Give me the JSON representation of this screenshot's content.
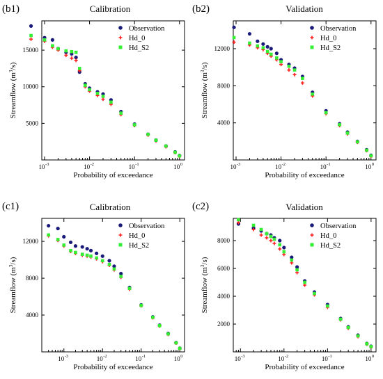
{
  "figure": {
    "xlabel": "Probability  of  exceedance",
    "ylabel_main": "Streamflow (m",
    "ylabel_sup": "3",
    "ylabel_tail": "/s)"
  },
  "legend_labels": [
    "Observation",
    "Hd_0",
    "Hd_S2"
  ],
  "chart_data": [
    {
      "panel": "(b1)",
      "title": "Calibration",
      "type": "scatter",
      "x_scale": "log",
      "xlim_decades": [
        -3,
        0
      ],
      "yticks": [
        5000,
        10000,
        15000
      ],
      "ylim": [
        0,
        19000
      ],
      "legend": "top-right",
      "series": [
        {
          "name": "Observation",
          "color": "#1a1a7a",
          "marker": "circle",
          "x": [
            0.0005,
            0.001,
            0.0015,
            0.002,
            0.003,
            0.004,
            0.005,
            0.006,
            0.008,
            0.01,
            0.015,
            0.02,
            0.03,
            0.05,
            0.1,
            0.2,
            0.3,
            0.5,
            0.8,
            1.0
          ],
          "y": [
            18300,
            16700,
            16400,
            15200,
            14700,
            14500,
            14000,
            12000,
            10400,
            9800,
            9300,
            9000,
            8200,
            6600,
            4900,
            3500,
            2700,
            1900,
            1100,
            600
          ]
        },
        {
          "name": "Hd_0",
          "color": "#ff2020",
          "marker": "plus",
          "x": [
            0.0005,
            0.001,
            0.0015,
            0.002,
            0.003,
            0.004,
            0.005,
            0.006,
            0.008,
            0.01,
            0.015,
            0.02,
            0.03,
            0.05,
            0.1,
            0.2,
            0.3,
            0.5,
            0.8,
            1.0
          ],
          "y": [
            16500,
            16200,
            15400,
            15000,
            14300,
            13900,
            13600,
            12200,
            10000,
            9400,
            8800,
            8300,
            7600,
            6200,
            4700,
            3400,
            2600,
            1800,
            1000,
            500
          ]
        },
        {
          "name": "Hd_S2",
          "color": "#33ee33",
          "marker": "square",
          "x": [
            0.0005,
            0.001,
            0.0015,
            0.002,
            0.003,
            0.004,
            0.005,
            0.006,
            0.008,
            0.01,
            0.015,
            0.02,
            0.03,
            0.05,
            0.1,
            0.2,
            0.3,
            0.5,
            0.8,
            1.0
          ],
          "y": [
            17000,
            16400,
            15600,
            15200,
            14900,
            14800,
            14700,
            12500,
            10200,
            9600,
            9100,
            8700,
            7900,
            6400,
            4800,
            3500,
            2700,
            1900,
            1050,
            550
          ]
        }
      ]
    },
    {
      "panel": "(b2)",
      "title": "Validation",
      "type": "scatter",
      "x_scale": "log",
      "xlim_decades": [
        -3,
        0
      ],
      "yticks": [
        4000,
        8000,
        12000
      ],
      "ylim": [
        0,
        15000
      ],
      "legend": "top-right",
      "series": [
        {
          "name": "Observation",
          "color": "#1a1a7a",
          "marker": "circle",
          "x": [
            0.0009,
            0.002,
            0.003,
            0.004,
            0.005,
            0.006,
            0.008,
            0.01,
            0.015,
            0.02,
            0.03,
            0.05,
            0.1,
            0.2,
            0.3,
            0.5,
            0.8,
            1.0
          ],
          "y": [
            14300,
            13600,
            12800,
            12500,
            12200,
            12000,
            11500,
            10800,
            10300,
            9900,
            9000,
            7300,
            5300,
            3900,
            3000,
            2000,
            1100,
            500
          ]
        },
        {
          "name": "Hd_0",
          "color": "#ff2020",
          "marker": "plus",
          "x": [
            0.0009,
            0.002,
            0.003,
            0.004,
            0.005,
            0.006,
            0.008,
            0.01,
            0.015,
            0.02,
            0.03,
            0.05,
            0.1,
            0.2,
            0.3,
            0.5,
            0.8,
            1.0
          ],
          "y": [
            12700,
            12400,
            12100,
            11900,
            11500,
            11200,
            10800,
            10300,
            9700,
            9200,
            8300,
            6900,
            5000,
            3700,
            2800,
            1900,
            1000,
            400
          ]
        },
        {
          "name": "Hd_S2",
          "color": "#33ee33",
          "marker": "square",
          "x": [
            0.0009,
            0.002,
            0.003,
            0.004,
            0.005,
            0.006,
            0.008,
            0.01,
            0.015,
            0.02,
            0.03,
            0.05,
            0.1,
            0.2,
            0.3,
            0.5,
            0.8,
            1.0
          ],
          "y": [
            13200,
            12600,
            12300,
            12100,
            11700,
            11400,
            11000,
            10600,
            10100,
            9700,
            8800,
            7100,
            5100,
            3800,
            2900,
            1950,
            1050,
            450
          ]
        }
      ]
    },
    {
      "panel": "(c1)",
      "title": "Calibration",
      "type": "scatter",
      "x_scale": "log",
      "xlim_decades": [
        -3.5,
        0
      ],
      "yticks": [
        4000,
        8000,
        12000
      ],
      "ylim": [
        0,
        14500
      ],
      "legend": "top-right",
      "series": [
        {
          "name": "Observation",
          "color": "#1a1a7a",
          "marker": "circle",
          "x": [
            0.0004,
            0.0007,
            0.001,
            0.0015,
            0.002,
            0.003,
            0.004,
            0.005,
            0.007,
            0.01,
            0.015,
            0.02,
            0.03,
            0.05,
            0.1,
            0.2,
            0.3,
            0.5,
            0.8,
            1.0
          ],
          "y": [
            13700,
            13400,
            12500,
            11900,
            11500,
            11400,
            11200,
            11000,
            10700,
            10400,
            9900,
            9300,
            8500,
            7000,
            5100,
            3800,
            2900,
            2000,
            1000,
            400
          ]
        },
        {
          "name": "Hd_0",
          "color": "#ff2020",
          "marker": "plus",
          "x": [
            0.0004,
            0.0007,
            0.001,
            0.0015,
            0.002,
            0.003,
            0.004,
            0.005,
            0.007,
            0.01,
            0.015,
            0.02,
            0.03,
            0.05,
            0.1,
            0.2,
            0.3,
            0.5,
            0.8,
            1.0
          ],
          "y": [
            12600,
            12100,
            11500,
            10900,
            10700,
            10500,
            10400,
            10300,
            10100,
            9800,
            9400,
            8900,
            8100,
            6800,
            5000,
            3700,
            2800,
            1900,
            950,
            350
          ]
        },
        {
          "name": "Hd_S2",
          "color": "#33ee33",
          "marker": "square",
          "x": [
            0.0004,
            0.0007,
            0.001,
            0.0015,
            0.002,
            0.003,
            0.004,
            0.005,
            0.007,
            0.01,
            0.015,
            0.02,
            0.03,
            0.05,
            0.1,
            0.2,
            0.3,
            0.5,
            0.8,
            1.0
          ],
          "y": [
            12700,
            12200,
            11600,
            11000,
            10800,
            10600,
            10500,
            10400,
            10200,
            9900,
            9500,
            9000,
            8200,
            6900,
            5050,
            3750,
            2850,
            1950,
            980,
            380
          ]
        }
      ]
    },
    {
      "panel": "(c2)",
      "title": "Validation",
      "type": "scatter",
      "x_scale": "log",
      "xlim_decades": [
        -3.1,
        0
      ],
      "yticks": [
        2000,
        4000,
        6000,
        8000
      ],
      "ylim": [
        0,
        9600
      ],
      "legend": "top-right",
      "series": [
        {
          "name": "Observation",
          "color": "#1a1a7a",
          "marker": "circle",
          "x": [
            0.0009,
            0.002,
            0.003,
            0.004,
            0.005,
            0.006,
            0.008,
            0.01,
            0.015,
            0.02,
            0.03,
            0.05,
            0.1,
            0.2,
            0.3,
            0.5,
            0.8,
            1.0
          ],
          "y": [
            9200,
            8900,
            8700,
            8500,
            8400,
            8200,
            8000,
            7500,
            6800,
            6100,
            5100,
            4300,
            3400,
            2400,
            1800,
            1200,
            600,
            400
          ]
        },
        {
          "name": "Hd_0",
          "color": "#ff2020",
          "marker": "plus",
          "x": [
            0.0009,
            0.002,
            0.003,
            0.004,
            0.005,
            0.006,
            0.008,
            0.01,
            0.015,
            0.02,
            0.03,
            0.05,
            0.1,
            0.2,
            0.3,
            0.5,
            0.8,
            1.0
          ],
          "y": [
            9300,
            8800,
            8400,
            8200,
            8000,
            7800,
            7400,
            7000,
            6400,
            5700,
            4800,
            4100,
            3200,
            2300,
            1700,
            1100,
            550,
            350
          ]
        },
        {
          "name": "Hd_S2",
          "color": "#33ee33",
          "marker": "square",
          "x": [
            0.0009,
            0.002,
            0.003,
            0.004,
            0.005,
            0.006,
            0.008,
            0.01,
            0.015,
            0.02,
            0.03,
            0.05,
            0.1,
            0.2,
            0.3,
            0.5,
            0.8,
            1.0
          ],
          "y": [
            9500,
            9100,
            8800,
            8500,
            8300,
            8100,
            7700,
            7200,
            6600,
            5900,
            5000,
            4200,
            3300,
            2350,
            1750,
            1150,
            580,
            380
          ]
        }
      ]
    }
  ]
}
